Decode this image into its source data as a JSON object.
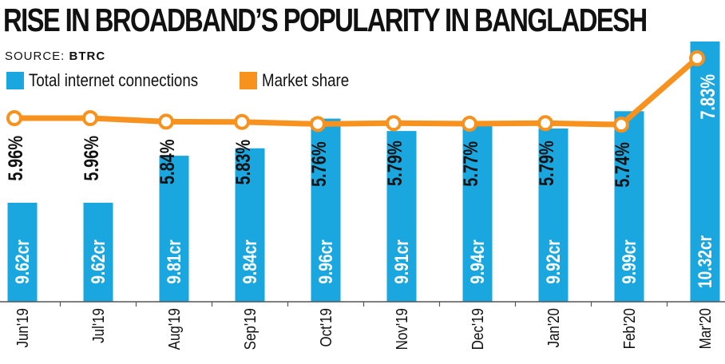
{
  "header": {
    "title": "RISE IN BROADBAND’S POPULARITY IN BANGLADESH",
    "source_label": "SOURCE:",
    "source_value": "BTRC"
  },
  "legend": {
    "bars_label": "Total internet connections",
    "line_label": "Market share"
  },
  "colors": {
    "bar": "#1aa7e0",
    "line": "#f7921e",
    "text": "#111111"
  },
  "chart_data": {
    "type": "bar",
    "title": "RISE IN BROADBAND’S POPULARITY IN BANGLADESH",
    "categories": [
      "Jun'19",
      "Jul'19",
      "Aug'19",
      "Sep'19",
      "Oct'19",
      "Nov'19",
      "Dec'19",
      "Jan'20",
      "Feb'20",
      "Mar'20"
    ],
    "series": [
      {
        "name": "Total internet connections",
        "type": "bar",
        "values": [
          9.62,
          9.62,
          9.81,
          9.84,
          9.96,
          9.91,
          9.94,
          9.92,
          9.99,
          10.32
        ],
        "labels": [
          "9.62cr",
          "9.62cr",
          "9.81cr",
          "9.84cr",
          "9.96cr",
          "9.91cr",
          "9.94cr",
          "9.92cr",
          "9.99cr",
          "10.32cr"
        ]
      },
      {
        "name": "Market share",
        "type": "line",
        "values": [
          5.96,
          5.96,
          5.84,
          5.83,
          5.76,
          5.79,
          5.77,
          5.79,
          5.74,
          7.83
        ],
        "labels": [
          "5.96%",
          "5.96%",
          "5.84%",
          "5.83%",
          "5.76%",
          "5.79%",
          "5.77%",
          "5.79%",
          "5.74%",
          "7.83%"
        ]
      }
    ],
    "grid": false
  }
}
